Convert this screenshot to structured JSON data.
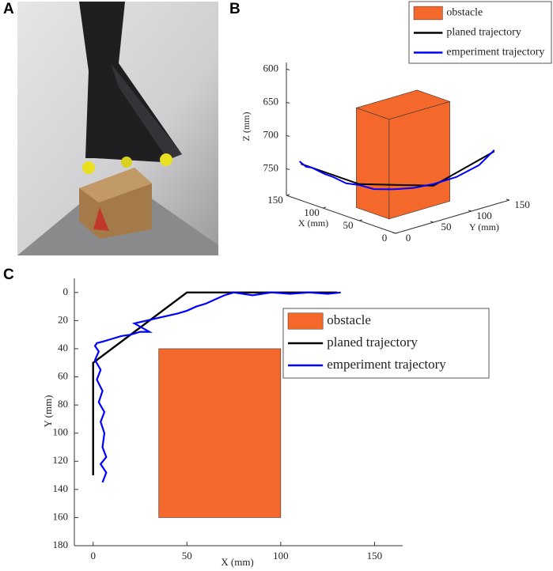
{
  "photo": {
    "panel_label": "A"
  },
  "chart_data": [
    {
      "type": "line3d",
      "panel_label": "B",
      "xlabel": "X (mm)",
      "ylabel": "Y (mm)",
      "zlabel": "Z (mm)",
      "xlim": [
        0,
        150
      ],
      "ylim": [
        0,
        150
      ],
      "zlim": [
        590,
        790
      ],
      "z_reversed": true,
      "xticks": [
        0,
        50,
        100,
        150
      ],
      "yticks": [
        0,
        50,
        100,
        150
      ],
      "zticks": [
        600,
        650,
        700,
        750
      ],
      "obstacle": {
        "name": "obstacle",
        "color": "#f4692b",
        "x": [
          35,
          80
        ],
        "y": [
          25,
          105
        ],
        "z": [
          640,
          790
        ]
      },
      "series": [
        {
          "name": "planed trajectory",
          "color": "#000000",
          "x": [
            130,
            50,
            0,
            0
          ],
          "y": [
            0,
            0,
            50,
            130
          ],
          "z": [
            735,
            735,
            735,
            710
          ]
        },
        {
          "name": "emperiment trajectory",
          "color": "#0000ff",
          "x": [
            132,
            125,
            115,
            100,
            85,
            70,
            55,
            40,
            25,
            12,
            5,
            0,
            0,
            0
          ],
          "y": [
            0,
            2,
            0,
            3,
            0,
            2,
            5,
            10,
            20,
            35,
            55,
            80,
            110,
            130
          ],
          "z": [
            732,
            738,
            735,
            740,
            738,
            742,
            740,
            742,
            740,
            738,
            736,
            732,
            724,
            708
          ]
        }
      ]
    },
    {
      "type": "line",
      "panel_label": "C",
      "xlabel": "X (mm)",
      "ylabel": "Y (mm)",
      "xlim": [
        -10,
        165
      ],
      "ylim": [
        -10,
        180
      ],
      "y_reversed": true,
      "xticks": [
        0,
        50,
        100,
        150
      ],
      "yticks": [
        0,
        20,
        40,
        60,
        80,
        100,
        120,
        140,
        160,
        180
      ],
      "obstacle": {
        "name": "obstacle",
        "color": "#f4692b",
        "x": [
          35,
          100
        ],
        "y": [
          40,
          160
        ]
      },
      "series": [
        {
          "name": "planed trajectory",
          "color": "#000000",
          "x": [
            0,
            0,
            50,
            130
          ],
          "y": [
            130,
            50,
            0,
            0
          ]
        },
        {
          "name": "emperiment trajectory",
          "color": "#0000ff",
          "x": [
            5,
            7,
            4,
            7,
            5,
            6,
            4,
            6,
            3,
            5,
            2,
            4,
            1,
            3,
            1,
            2,
            5,
            10,
            15,
            20,
            25,
            30,
            22,
            35,
            45,
            50,
            55,
            60,
            65,
            70,
            75,
            85,
            95,
            105,
            115,
            125,
            132
          ],
          "y": [
            135,
            128,
            122,
            117,
            110,
            100,
            92,
            85,
            78,
            70,
            62,
            55,
            48,
            42,
            38,
            36,
            35,
            33,
            31,
            30,
            28,
            28,
            22,
            18,
            15,
            13,
            10,
            8,
            5,
            2,
            0,
            2,
            0,
            1,
            0,
            1,
            0
          ]
        }
      ]
    }
  ]
}
